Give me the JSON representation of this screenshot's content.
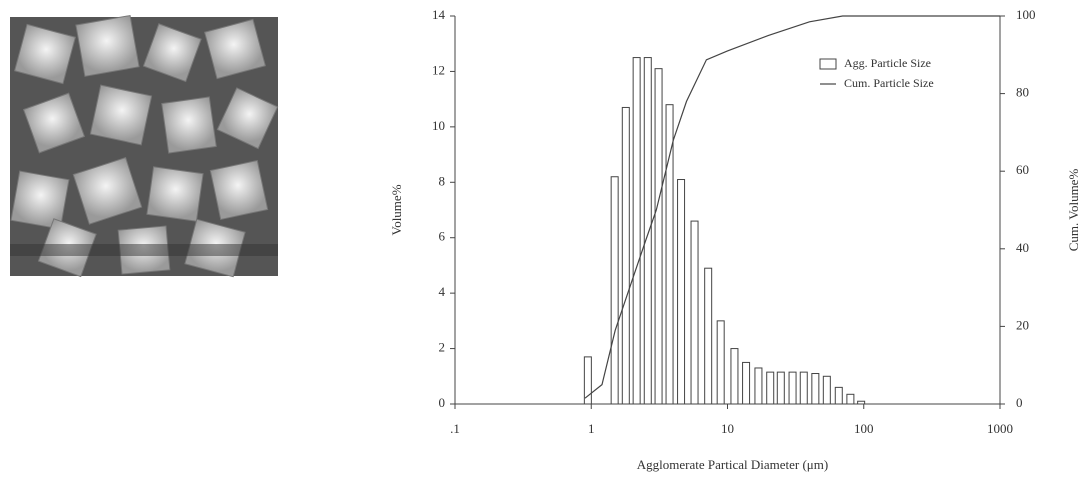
{
  "chart_data": {
    "type": "histogram",
    "x_label": "Agglomerate Partical Diameter (μm)",
    "y_label": "Volume%",
    "y2_label": "Cum. Volume%",
    "log_x": true,
    "xlim": [
      0.1,
      1000
    ],
    "xticks": [
      {
        "value": 0.1,
        "label": ".1"
      },
      1,
      10,
      100,
      1000
    ],
    "ylim": [
      0,
      14
    ],
    "yticks": [
      0,
      2,
      4,
      6,
      8,
      10,
      12,
      14
    ],
    "y2lim": [
      0,
      100
    ],
    "y2ticks": [
      0,
      20,
      40,
      60,
      80,
      100
    ],
    "legend": "upper right",
    "bins": [
      0.89,
      1.07,
      1.4,
      1.69,
      2.03,
      2.45,
      2.94,
      3.54,
      4.3,
      5.4,
      6.8,
      8.4,
      10.6,
      12.9,
      15.9,
      19.4,
      23.2,
      28.3,
      34.2,
      41.6,
      50.5,
      61.8,
      75.2,
      90.2,
      108
    ],
    "series": [
      {
        "name": "Agg. Particle Size",
        "color": "#444444",
        "values": [
          1.7,
          0,
          8.2,
          10.7,
          12.5,
          12.5,
          12.1,
          10.8,
          8.1,
          6.6,
          4.9,
          3.0,
          2.0,
          1.5,
          1.3,
          1.15,
          1.15,
          1.15,
          1.15,
          1.1,
          1.0,
          0.6,
          0.35,
          0.1
        ]
      },
      {
        "name": "Cum. Particle Size",
        "color": "#444444",
        "axis": "y2",
        "x": [
          0.9,
          1.2,
          1.5,
          2,
          2.5,
          3,
          4,
          5,
          7,
          10,
          20,
          40,
          70,
          100,
          1000
        ],
        "values": [
          1.5,
          5,
          19,
          32,
          42,
          50,
          68,
          78,
          88.7,
          91,
          95,
          98.5,
          100,
          100,
          100
        ]
      }
    ]
  }
}
